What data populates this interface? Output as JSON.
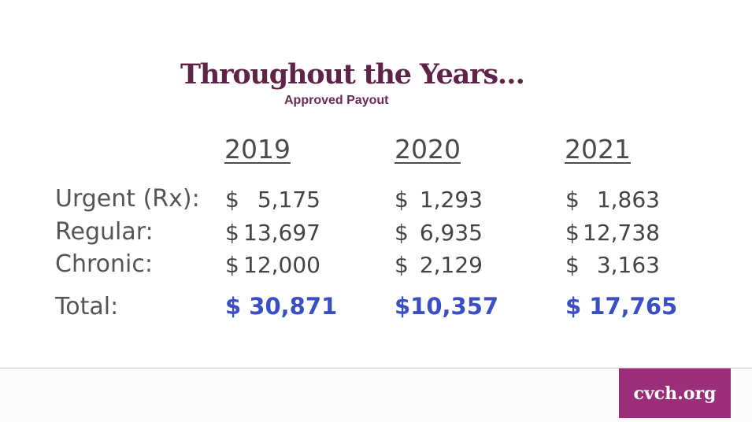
{
  "title": "Throughout the Years…",
  "subtitle": "Approved Payout",
  "years": [
    "2019",
    "2020",
    "2021"
  ],
  "currency_symbol": "$",
  "rows": [
    {
      "label": "Urgent (Rx):",
      "values": [
        "5,175",
        "1,293",
        "1,863"
      ]
    },
    {
      "label": "Regular:",
      "values": [
        "13,697",
        "6,935",
        "12,738"
      ]
    },
    {
      "label": "Chronic:",
      "values": [
        "12,000",
        "2,129",
        "3,163"
      ]
    }
  ],
  "totals": {
    "label": "Total:",
    "values": [
      "$ 30,871",
      "$10,357",
      "$ 17,765"
    ]
  },
  "footer": {
    "badge_text": "cvch.org"
  },
  "colors": {
    "title": "#5e2448",
    "total": "#3b4fc4",
    "badge": "#9c2d78"
  }
}
